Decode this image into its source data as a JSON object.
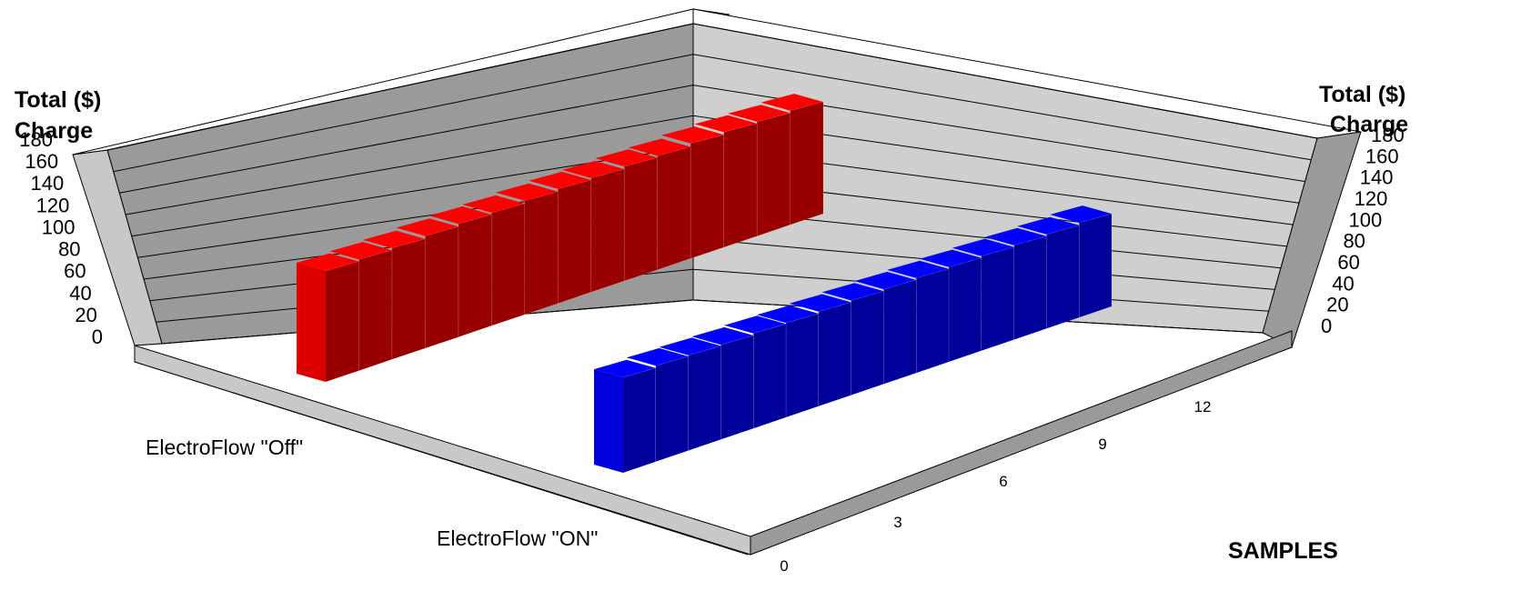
{
  "chart_data": {
    "type": "bar",
    "title": "",
    "z_axis_title_left": "Total ($) Charge",
    "z_axis_title_right": "Total ($) Charge",
    "x_axis_title": "SAMPLES",
    "zlim": [
      0,
      180
    ],
    "z_ticks": [
      0,
      20,
      40,
      60,
      80,
      100,
      120,
      140,
      160,
      180
    ],
    "x_ticks": [
      0,
      3,
      6,
      9,
      12
    ],
    "x": [
      0,
      1,
      2,
      3,
      4,
      5,
      6,
      7,
      8,
      9,
      10,
      11,
      12,
      13,
      14
    ],
    "categories": [
      "ElectroFlow \"Off\"",
      "ElectroFlow \"ON\""
    ],
    "grid": true,
    "series": [
      {
        "name": "ElectroFlow \"Off\"",
        "color": "#cc0000",
        "values": [
          108,
          110,
          112,
          115,
          118,
          120,
          123,
          126,
          128,
          131,
          133,
          137,
          140,
          142,
          145
        ]
      },
      {
        "name": "ElectroFlow \"ON\"",
        "color": "#0000cc",
        "values": [
          88,
          90,
          91,
          92,
          94,
          95,
          97,
          99,
          101,
          103,
          105,
          107,
          109,
          111,
          114
        ]
      }
    ]
  }
}
